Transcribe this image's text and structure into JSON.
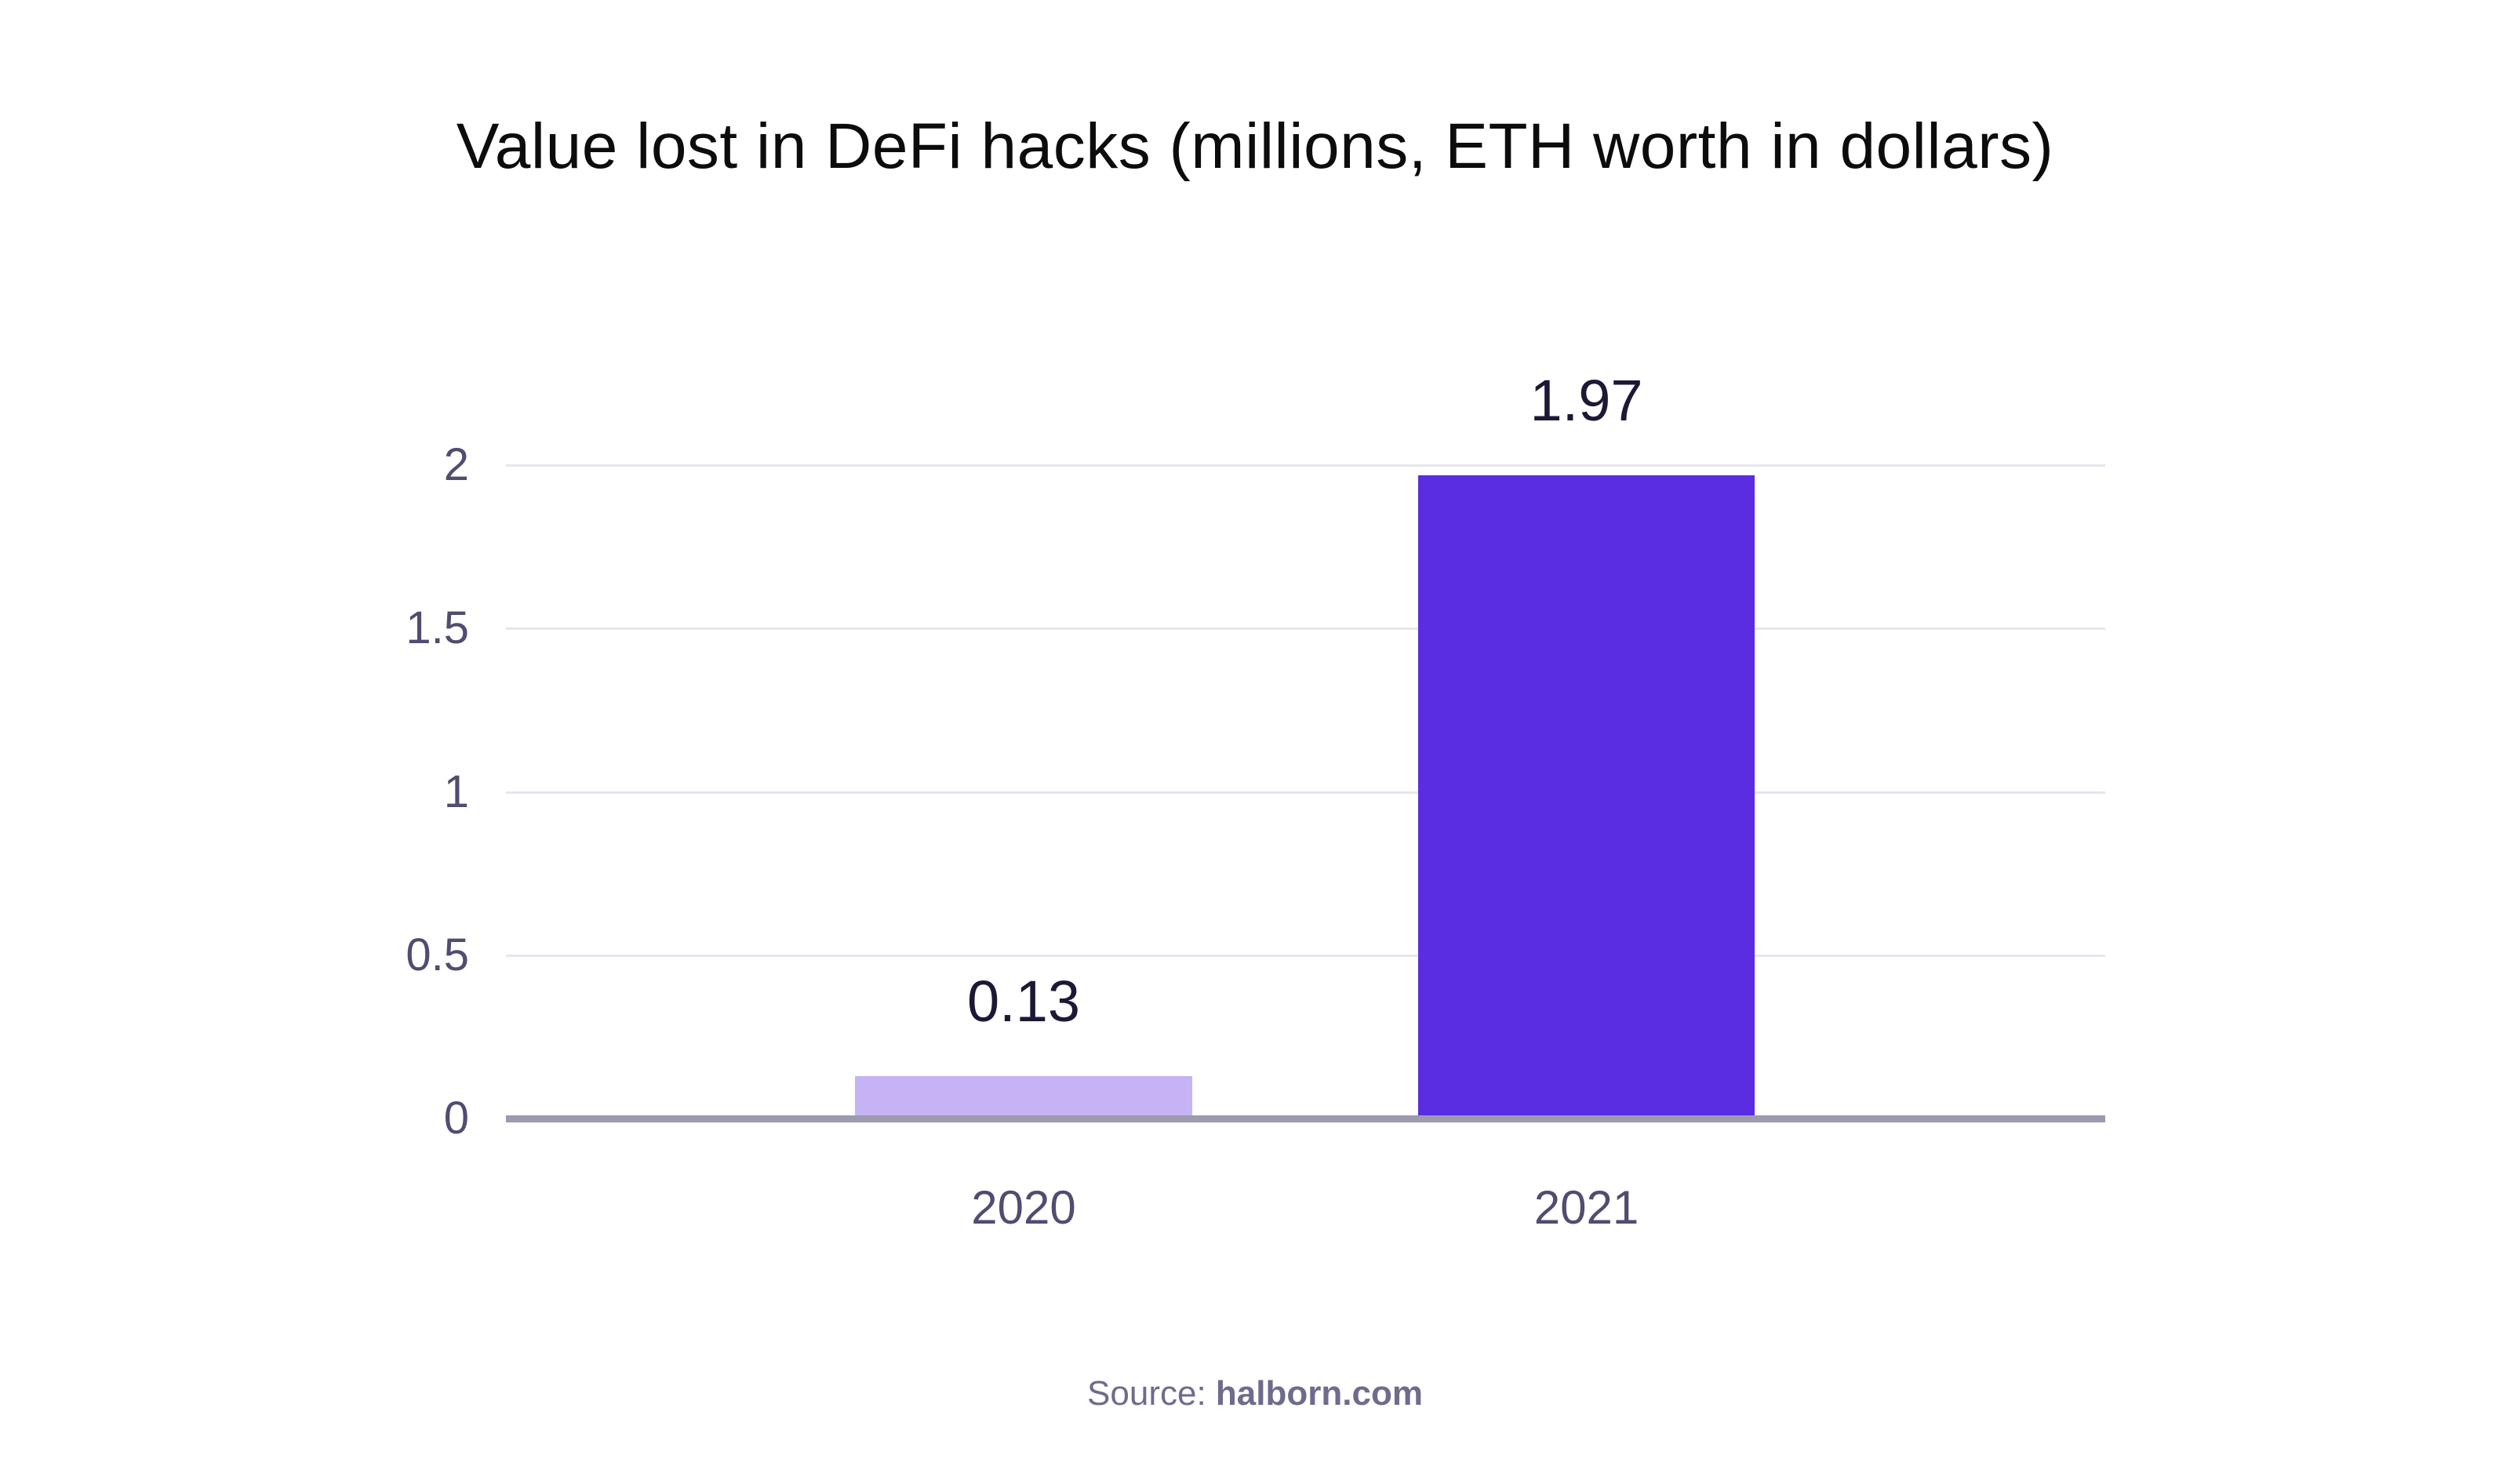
{
  "title": "Value lost in DeFi hacks (millions, ETH worth in dollars)",
  "source": {
    "prefix": "Source: ",
    "name": "halborn.com"
  },
  "chart_data": {
    "type": "bar",
    "title": "Value lost in DeFi hacks (millions, ETH worth in dollars)",
    "categories": [
      "2020",
      "2021"
    ],
    "values": [
      0.13,
      1.97
    ],
    "value_labels": [
      "0.13",
      "1.97"
    ],
    "xlabel": "",
    "ylabel": "",
    "ylim": [
      0,
      2
    ],
    "yticks": [
      0,
      0.5,
      1,
      1.5,
      2
    ],
    "ytick_labels": [
      "0",
      "0.5",
      "1",
      "1.5",
      "2"
    ],
    "grid": true,
    "legend": false,
    "annotation": "Source: halborn.com",
    "colors": {
      "bar_2020": "#c5b3f5",
      "bar_2021": "#5a2ce2",
      "gridline": "#e7e6ef",
      "axis_line": "#9d9aaf",
      "tick_label": "#514c70",
      "value_label": "#1e1836",
      "title": "#0c0c0c",
      "source": "#6e6b8c",
      "background": "#ffffff"
    }
  }
}
